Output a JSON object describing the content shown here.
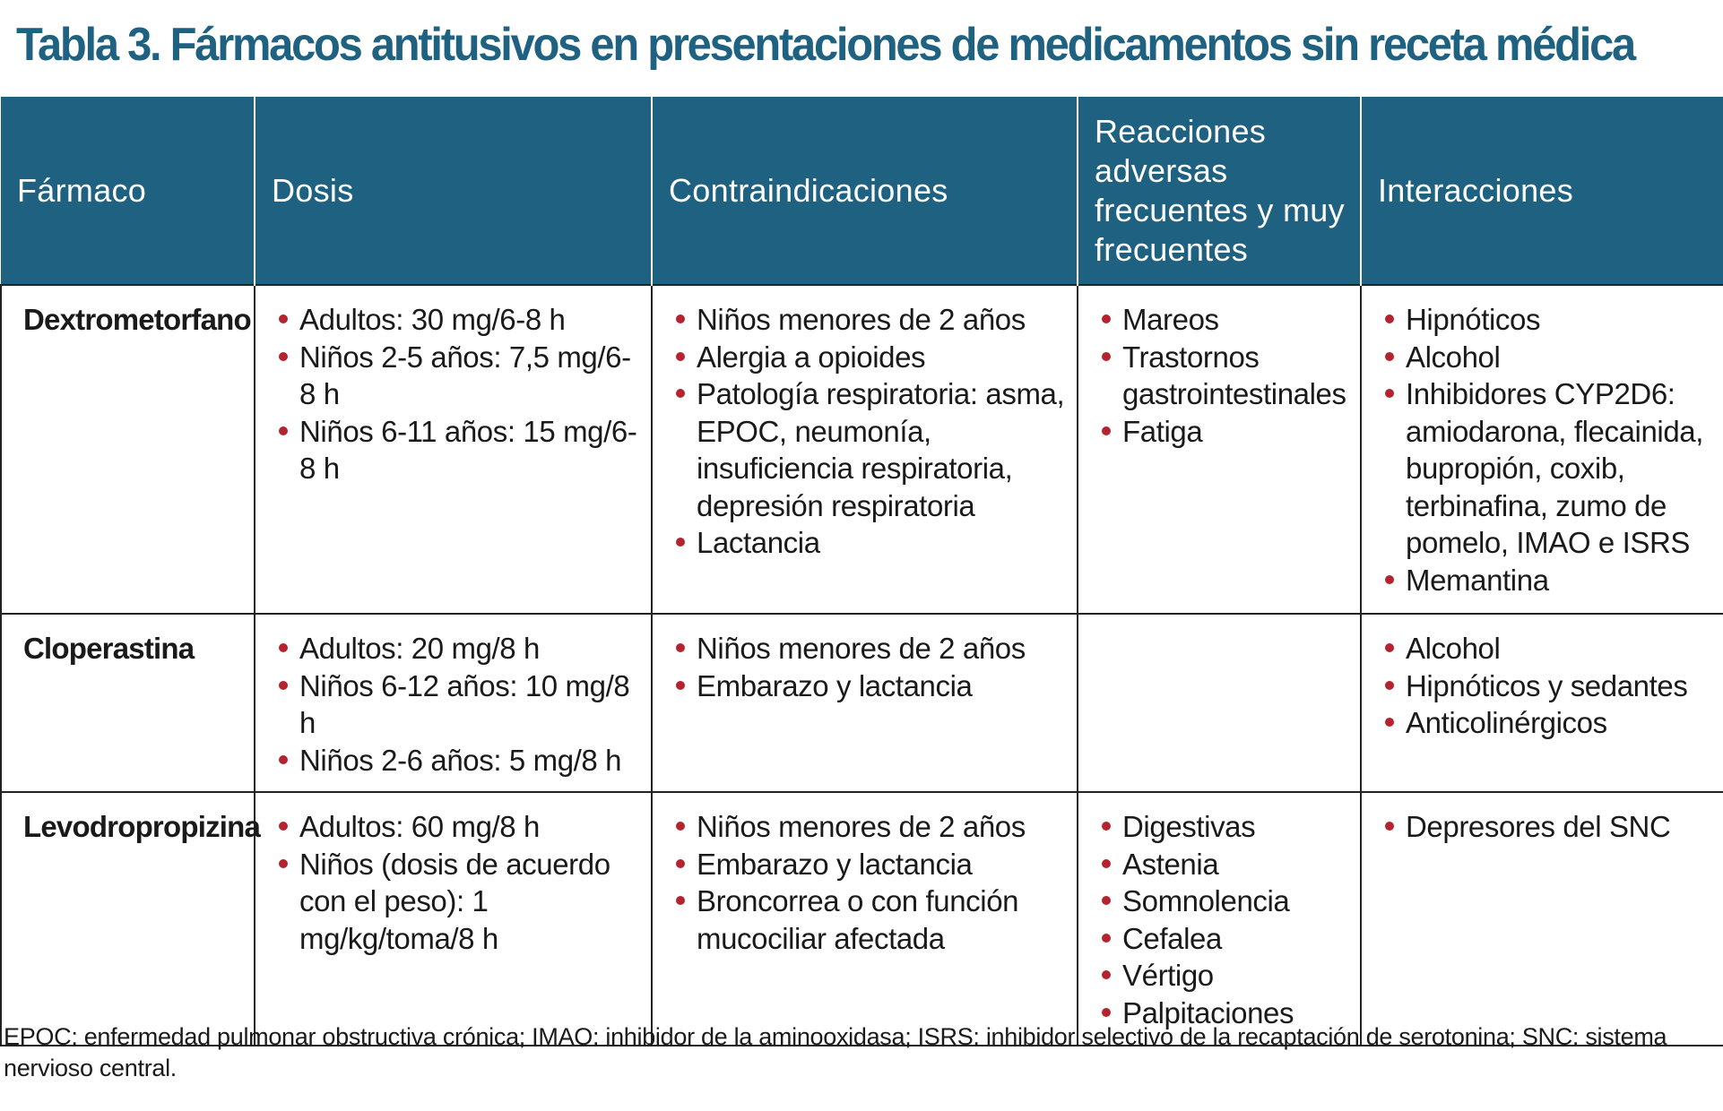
{
  "title": "Tabla 3. Fármacos antitusivos en presentaciones de medicamentos sin receta médica",
  "headers": {
    "farmaco": "Fármaco",
    "dosis": "Dosis",
    "contraindicaciones": "Contraindicaciones",
    "reacciones": "Reacciones adversas frecuentes y muy frecuentes",
    "interacciones": "Interacciones"
  },
  "rows": [
    {
      "farmaco": "Dextrometorfano",
      "dosis": [
        "Adultos: 30 mg/6-8 h",
        "Niños 2-5 años: 7,5 mg/6-8 h",
        "Niños 6-11 años: 15 mg/6-8 h"
      ],
      "contraindicaciones": [
        "Niños menores de 2 años",
        "Alergia a opioides",
        "Patología respiratoria: asma, EPOC, neumonía, insuficiencia respiratoria, depresión respiratoria",
        "Lactancia"
      ],
      "reacciones": [
        "Mareos",
        "Trastornos gastrointestinales",
        "Fatiga"
      ],
      "interacciones": [
        "Hipnóticos",
        "Alcohol",
        "Inhibidores CYP2D6: amiodarona, flecainida, bupropión, coxib, terbinafina, zumo de pomelo, IMAO e ISRS",
        "Memantina"
      ]
    },
    {
      "farmaco": "Cloperastina",
      "dosis": [
        "Adultos: 20 mg/8 h",
        "Niños 6-12 años: 10 mg/8 h",
        "Niños 2-6 años: 5 mg/8 h"
      ],
      "contraindicaciones": [
        "Niños menores de 2 años",
        "Embarazo y lactancia"
      ],
      "reacciones": [],
      "interacciones": [
        "Alcohol",
        "Hipnóticos y sedantes",
        "Anticolinérgicos"
      ]
    },
    {
      "farmaco": "Levodropropizina",
      "dosis": [
        "Adultos: 60 mg/8 h",
        "Niños (dosis de acuerdo con el peso): 1 mg/kg/toma/8 h"
      ],
      "contraindicaciones": [
        "Niños menores de 2 años",
        "Embarazo y lactancia",
        "Broncorrea o con función mucociliar afectada"
      ],
      "reacciones": [
        "Digestivas",
        "Astenia",
        "Somnolencia",
        "Cefalea",
        "Vértigo",
        "Palpitaciones"
      ],
      "interacciones": [
        "Depresores del SNC"
      ]
    }
  ],
  "footnote": "EPOC: enfermedad pulmonar obstructiva crónica; IMAO: inhibidor de la aminooxidasa; ISRS: inhibidor selectivo de la recaptación de serotonina; SNC: sistema nervioso central.",
  "colors": {
    "header_bg": "#1e6181",
    "title": "#1e6181",
    "bullet": "#b5232e"
  }
}
